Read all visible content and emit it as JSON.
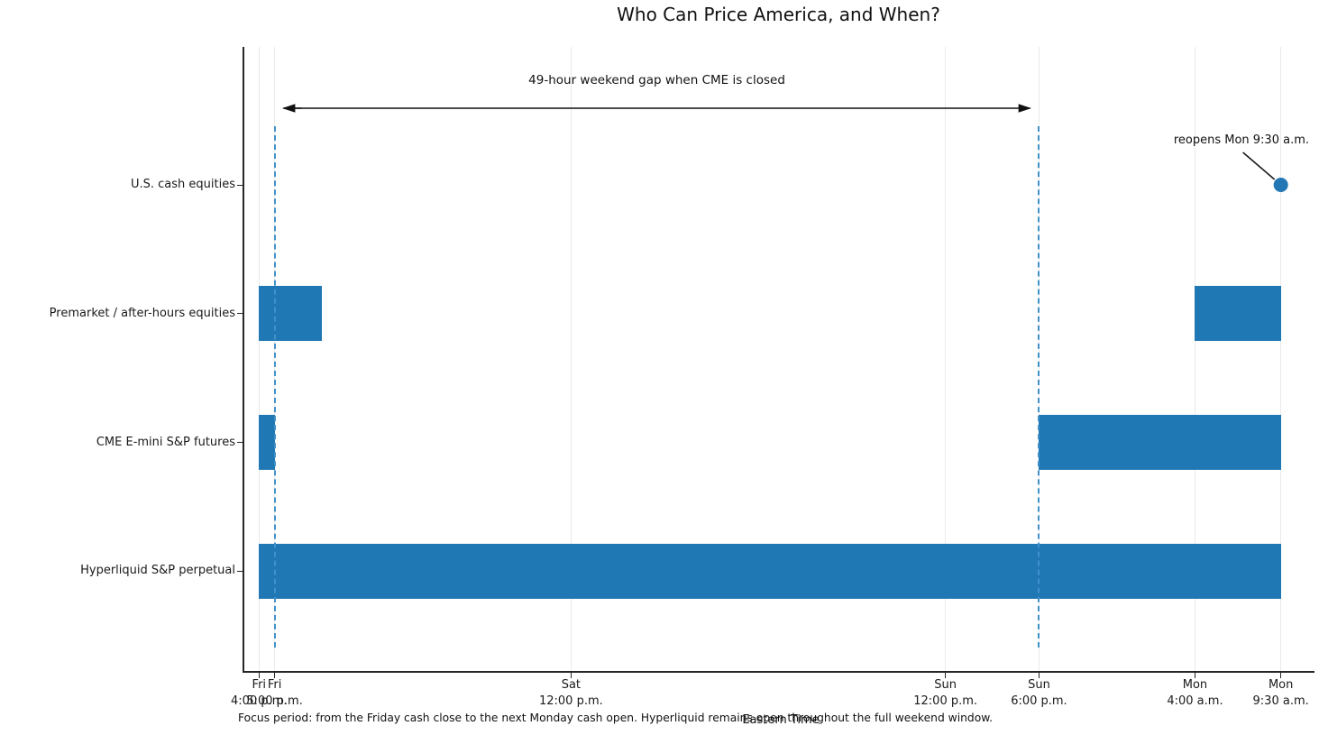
{
  "figure": {
    "title": "Who Can Price America, and When?",
    "caption": "Focus period: from the Friday cash close to the next Monday cash open. Hyperliquid remains open throughout the full weekend window.",
    "x_axis_label": "Eastern Time"
  },
  "chart_data": {
    "type": "bar",
    "subtype": "horizontal_interval_timeline",
    "title": "Who Can Price America, and When?",
    "xlabel": "Eastern Time",
    "ylabel": "",
    "x_unit": "hours after Friday 4:00 p.m. ET",
    "xlim": [
      -1,
      67.6
    ],
    "grid": "vertical_only",
    "legend": "none",
    "colors": {
      "bar": "#1f77b4",
      "marker": "#2277b4",
      "dashed_guide": "#4191c9",
      "gridline": "#eaeaea",
      "annotation_text": "#111111"
    },
    "x_ticks": [
      {
        "hour": 0,
        "day": "Fri",
        "time": "4:00 p.m."
      },
      {
        "hour": 1,
        "day": "Fri",
        "time": "5:00 p.m."
      },
      {
        "hour": 20,
        "day": "Sat",
        "time": "12:00 p.m."
      },
      {
        "hour": 44,
        "day": "Sun",
        "time": "12:00 p.m."
      },
      {
        "hour": 50,
        "day": "Sun",
        "time": "6:00 p.m."
      },
      {
        "hour": 60,
        "day": "Mon",
        "time": "4:00 a.m."
      },
      {
        "hour": 65.5,
        "day": "Mon",
        "time": "9:30 a.m."
      }
    ],
    "rows": [
      {
        "label": "U.S. cash equities",
        "intervals": [],
        "reopen_marker": {
          "hour": 65.5,
          "annotation": "reopens Mon 9:30 a.m."
        }
      },
      {
        "label": "Premarket / after-hours equities",
        "intervals": [
          {
            "start_hour": 0,
            "end_hour": 4,
            "session": "Fri 4:00 p.m. - 8:00 p.m."
          },
          {
            "start_hour": 60,
            "end_hour": 65.5,
            "session": "Mon 4:00 a.m. - 9:30 a.m."
          }
        ]
      },
      {
        "label": "CME E-mini S&P futures",
        "intervals": [
          {
            "start_hour": 0,
            "end_hour": 1,
            "session": "Fri 4:00 p.m. - 5:00 p.m."
          },
          {
            "start_hour": 50,
            "end_hour": 65.5,
            "session": "Sun 6:00 p.m. - Mon 9:30 a.m."
          }
        ]
      },
      {
        "label": "Hyperliquid S&P perpetual",
        "intervals": [
          {
            "start_hour": 0,
            "end_hour": 65.5,
            "session": "Fri 4:00 p.m. - Mon 9:30 a.m."
          }
        ]
      }
    ],
    "closed_gap": {
      "annotation": "49-hour weekend gap when CME is closed",
      "start_hour": 1,
      "end_hour": 50,
      "dashed_guides_at_hours": [
        1,
        50
      ]
    }
  }
}
